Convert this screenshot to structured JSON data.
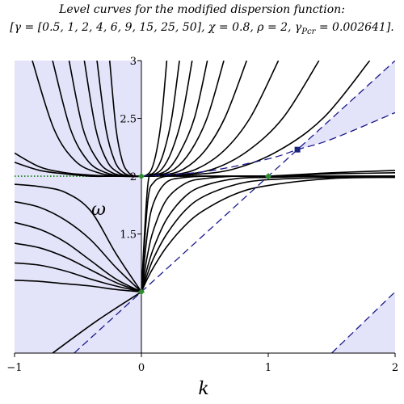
{
  "chart_data": {
    "type": "line",
    "title": "Level curves for the modified dispersion function:",
    "subtitle_parts": [
      "[γ = [0.5, 1, 2, 4, 6, 9, 15, 25, 50], χ = 0.8, ρ = 2, γ",
      "Pcr",
      " = 0.002641]."
    ],
    "x_label": "k",
    "y_label": "ω",
    "xlim": [
      -1,
      2
    ],
    "ylim": [
      0.47,
      3
    ],
    "xticks": [
      {
        "value": -1,
        "label": "−1"
      },
      0,
      1,
      2
    ],
    "yticks": [
      1.5,
      2,
      2.5,
      3
    ],
    "y_axis_position": 0,
    "line_color": "#000000",
    "shade_color": "#e3e3f9",
    "series": [
      {
        "x": [
          -0.86,
          -0.69,
          -0.52,
          -0.34,
          -0.17,
          0
        ],
        "values": [
          3,
          2.41,
          2.13,
          2.03,
          2,
          2
        ]
      },
      {
        "x": [
          -0.7,
          -0.56,
          -0.42,
          -0.28,
          -0.14,
          0
        ],
        "values": [
          3,
          2.41,
          2.13,
          2.03,
          2,
          2
        ]
      },
      {
        "x": [
          -0.57,
          -0.46,
          -0.34,
          -0.23,
          -0.11,
          0
        ],
        "values": [
          3,
          2.41,
          2.13,
          2.03,
          2,
          2
        ]
      },
      {
        "x": [
          -0.45,
          -0.36,
          -0.27,
          -0.18,
          -0.09,
          0
        ],
        "values": [
          3,
          2.41,
          2.13,
          2.03,
          2,
          2
        ]
      },
      {
        "x": [
          -0.35,
          -0.28,
          -0.21,
          -0.14,
          -0.07,
          0
        ],
        "values": [
          3,
          2.41,
          2.13,
          2.03,
          2,
          2
        ]
      },
      {
        "x": [
          -0.25,
          -0.2,
          -0.15,
          -0.1,
          -0.05,
          0
        ],
        "values": [
          3,
          2.41,
          2.13,
          2.03,
          2,
          2
        ]
      },
      {
        "x": [
          -1,
          -0.8,
          -0.6,
          -0.4,
          -0.2,
          0
        ],
        "values": [
          2.2,
          2.08,
          2.03,
          2.01,
          2,
          2
        ]
      },
      {
        "x": [
          -1,
          -0.8,
          -0.6,
          -0.4,
          -0.2,
          0
        ],
        "values": [
          2.12,
          2.05,
          2.02,
          2,
          2,
          2
        ]
      },
      {
        "x": [
          0,
          0.04,
          0.08,
          0.12,
          0.16,
          0.2
        ],
        "values": [
          2,
          2.01,
          2.06,
          2.22,
          2.51,
          3
        ]
      },
      {
        "x": [
          0,
          0.06,
          0.12,
          0.18,
          0.24,
          0.3
        ],
        "values": [
          2,
          2.01,
          2.06,
          2.22,
          2.51,
          3
        ]
      },
      {
        "x": [
          0,
          0.08,
          0.16,
          0.24,
          0.32,
          0.4
        ],
        "values": [
          2,
          2.01,
          2.06,
          2.22,
          2.51,
          3
        ]
      },
      {
        "x": [
          0,
          0.1,
          0.21,
          0.31,
          0.42,
          0.52
        ],
        "values": [
          2,
          2.01,
          2.06,
          2.22,
          2.51,
          3
        ]
      },
      {
        "x": [
          0,
          0.13,
          0.26,
          0.39,
          0.52,
          0.65
        ],
        "values": [
          2,
          2.01,
          2.06,
          2.22,
          2.51,
          3
        ]
      },
      {
        "x": [
          0,
          0.17,
          0.33,
          0.5,
          0.66,
          0.83
        ],
        "values": [
          2,
          2.01,
          2.06,
          2.22,
          2.51,
          3
        ]
      },
      {
        "x": [
          0,
          0.22,
          0.43,
          0.65,
          0.86,
          1.08
        ],
        "values": [
          2,
          2.01,
          2.06,
          2.22,
          2.51,
          3
        ]
      },
      {
        "x": [
          0,
          0.28,
          0.56,
          0.84,
          1.12,
          1.4
        ],
        "values": [
          2,
          2.01,
          2.06,
          2.22,
          2.51,
          3
        ]
      },
      {
        "x": [
          0,
          0.36,
          0.72,
          1.08,
          1.44,
          1.8
        ],
        "values": [
          2,
          2.01,
          2.06,
          2.22,
          2.51,
          3
        ]
      },
      {
        "x": [
          -1,
          -0.8,
          -0.6,
          -0.4,
          -0.2,
          0
        ],
        "values": [
          1.93,
          1.91,
          1.86,
          1.7,
          1.33,
          1
        ]
      },
      {
        "x": [
          -1,
          -0.8,
          -0.6,
          -0.4,
          -0.2,
          0
        ],
        "values": [
          1.78,
          1.73,
          1.62,
          1.45,
          1.21,
          1
        ]
      },
      {
        "x": [
          -1,
          -0.8,
          -0.6,
          -0.4,
          -0.2,
          0
        ],
        "values": [
          1.6,
          1.54,
          1.43,
          1.27,
          1.11,
          1
        ]
      },
      {
        "x": [
          -1,
          -0.8,
          -0.6,
          -0.4,
          -0.2,
          0
        ],
        "values": [
          1.42,
          1.38,
          1.3,
          1.19,
          1.08,
          1
        ]
      },
      {
        "x": [
          -1,
          -0.8,
          -0.6,
          -0.4,
          -0.2,
          0
        ],
        "values": [
          1.25,
          1.23,
          1.18,
          1.11,
          1.05,
          1
        ]
      },
      {
        "x": [
          -1,
          -0.8,
          -0.6,
          -0.4,
          -0.2,
          0
        ],
        "values": [
          1.1,
          1.09,
          1.07,
          1.05,
          1.02,
          1
        ]
      },
      {
        "x": [
          -0.7,
          -0.35,
          0
        ],
        "values": [
          0.47,
          0.75,
          1
        ]
      },
      {
        "x": [
          0,
          0.05,
          0.1,
          0.2,
          0.35,
          0.5,
          0.75,
          1,
          1.5,
          2
        ],
        "values": [
          1,
          1.92,
          2,
          2,
          2,
          2,
          2,
          2,
          2,
          2
        ]
      },
      {
        "x": [
          0,
          0.05,
          0.1,
          0.2,
          0.35,
          0.5,
          0.75,
          1,
          1.5,
          2
        ],
        "values": [
          1,
          1.78,
          1.95,
          2,
          2,
          2,
          2,
          2,
          2,
          2
        ]
      },
      {
        "x": [
          0,
          0.05,
          0.1,
          0.2,
          0.35,
          0.5,
          0.75,
          1,
          1.5,
          2
        ],
        "values": [
          1,
          1.53,
          1.78,
          1.95,
          1.99,
          2,
          2,
          2,
          2,
          2
        ]
      },
      {
        "x": [
          0,
          0.05,
          0.1,
          0.2,
          0.35,
          0.5,
          0.75,
          1,
          1.5,
          2
        ],
        "values": [
          1,
          1.33,
          1.55,
          1.8,
          1.94,
          1.98,
          2,
          2,
          2,
          2
        ]
      },
      {
        "x": [
          0,
          0.05,
          0.1,
          0.2,
          0.35,
          0.5,
          0.75,
          1,
          1.5,
          2
        ],
        "values": [
          1,
          1.22,
          1.39,
          1.63,
          1.83,
          1.92,
          1.98,
          1.99,
          2,
          2
        ]
      },
      {
        "x": [
          0,
          0.05,
          0.1,
          0.2,
          0.35,
          0.5,
          0.75,
          1,
          1.5,
          2
        ],
        "values": [
          1,
          1.16,
          1.3,
          1.5,
          1.71,
          1.83,
          1.93,
          1.97,
          1.99,
          2
        ]
      },
      {
        "x": [
          0,
          0.05,
          0.1,
          0.2,
          0.35,
          0.5,
          0.75,
          1,
          1.5,
          2
        ],
        "values": [
          1,
          1.12,
          1.22,
          1.39,
          1.58,
          1.71,
          1.85,
          1.92,
          1.98,
          1.99
        ]
      },
      {
        "x": [
          1,
          1.25,
          1.5,
          2
        ],
        "values": [
          2,
          2.01,
          2.02,
          2.03
        ]
      },
      {
        "x": [
          1,
          1.25,
          1.5,
          2
        ],
        "values": [
          2,
          2.015,
          2.03,
          2.05
        ]
      }
    ],
    "dashed_color": "#1a1a8c",
    "dashed_lines": [
      {
        "x": [
          -0.53,
          2
        ],
        "values": [
          0.47,
          3
        ]
      },
      {
        "x": [
          0,
          0.5,
          1,
          1.23,
          1.5,
          2
        ],
        "values": [
          2,
          2.04,
          2.15,
          2.23,
          2.32,
          2.55
        ]
      },
      {
        "x": [
          1.5,
          2
        ],
        "values": [
          0.47,
          1
        ]
      }
    ],
    "dotted_line": {
      "x": [
        -1,
        2
      ],
      "values": [
        2,
        2
      ],
      "color": "#228b22"
    },
    "diamond_points": {
      "x": [
        0,
        0,
        1
      ],
      "values": [
        2,
        1,
        2
      ],
      "color": "#2e8b2e"
    },
    "square_points": {
      "x": [
        1.23
      ],
      "values": [
        2.23
      ],
      "color": "#1a237e"
    }
  }
}
